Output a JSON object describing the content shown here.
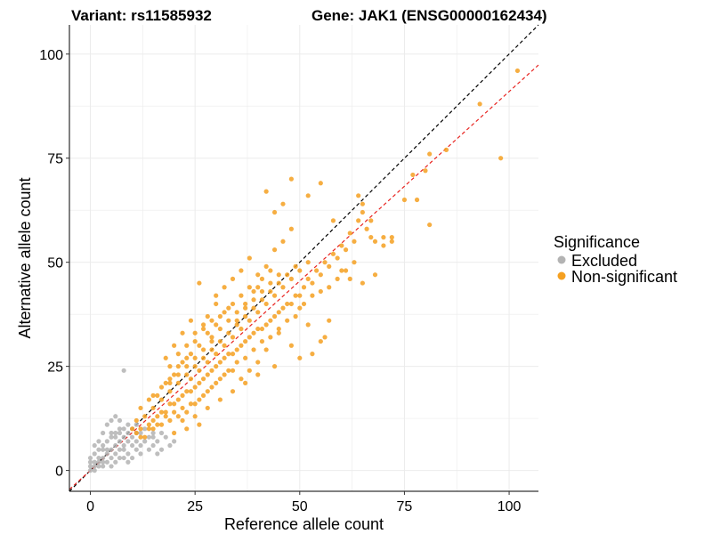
{
  "header": {
    "variant_title": "Variant: rs11585932",
    "gene_title": "Gene: JAK1 (ENSG00000162434)"
  },
  "colors": {
    "excluded": "#b3b3b3",
    "non_significant": "#f5a021",
    "identity_line": "#000000",
    "fit_line": "#e8231f",
    "grid": "#ebebeb"
  },
  "chart_data": {
    "type": "scatter",
    "xlabel": "Reference allele count",
    "ylabel": "Alternative allele count",
    "xlim": [
      -5,
      107
    ],
    "ylim": [
      -5,
      107
    ],
    "x_ticks": [
      0,
      25,
      50,
      75,
      100
    ],
    "y_ticks": [
      0,
      25,
      50,
      75,
      100
    ],
    "grid": true,
    "legend_position": "right",
    "legend": {
      "title": "Significance",
      "entries": [
        "Excluded",
        "Non-significant"
      ]
    },
    "lines": [
      {
        "name": "identity",
        "slope": 1.0,
        "intercept": 0,
        "style": "dashed",
        "color": "#000000"
      },
      {
        "name": "fit",
        "slope": 0.91,
        "intercept": 0,
        "style": "dashed",
        "color": "#e8231f"
      }
    ],
    "series": [
      {
        "name": "Excluded",
        "color": "#b3b3b3",
        "points": [
          [
            0,
            0
          ],
          [
            0,
            1
          ],
          [
            1,
            1
          ],
          [
            1,
            2
          ],
          [
            0,
            3
          ],
          [
            2,
            2
          ],
          [
            1,
            4
          ],
          [
            2,
            3
          ],
          [
            3,
            1
          ],
          [
            3,
            3
          ],
          [
            2,
            5
          ],
          [
            4,
            2
          ],
          [
            4,
            4
          ],
          [
            3,
            6
          ],
          [
            5,
            3
          ],
          [
            5,
            5
          ],
          [
            4,
            7
          ],
          [
            6,
            4
          ],
          [
            6,
            6
          ],
          [
            5,
            8
          ],
          [
            7,
            3
          ],
          [
            7,
            5
          ],
          [
            7,
            7
          ],
          [
            6,
            9
          ],
          [
            8,
            5
          ],
          [
            8,
            6
          ],
          [
            8,
            8
          ],
          [
            9,
            4
          ],
          [
            9,
            7
          ],
          [
            9,
            9
          ],
          [
            10,
            6
          ],
          [
            10,
            8
          ],
          [
            11,
            5
          ],
          [
            11,
            7
          ],
          [
            12,
            6
          ],
          [
            12,
            9
          ],
          [
            13,
            7
          ],
          [
            14,
            8
          ],
          [
            15,
            6
          ],
          [
            16,
            7
          ],
          [
            17,
            5
          ],
          [
            18,
            8
          ],
          [
            3,
            9
          ],
          [
            4,
            11
          ],
          [
            5,
            12
          ],
          [
            6,
            13
          ],
          [
            7,
            10
          ],
          [
            8,
            24
          ],
          [
            2,
            7
          ],
          [
            1,
            6
          ],
          [
            0,
            2
          ],
          [
            3,
            5
          ],
          [
            6,
            2
          ],
          [
            9,
            2
          ],
          [
            10,
            3
          ],
          [
            12,
            4
          ],
          [
            14,
            5
          ],
          [
            15,
            9
          ],
          [
            16,
            4
          ],
          [
            19,
            6
          ],
          [
            20,
            7
          ],
          [
            5,
            9
          ],
          [
            7,
            12
          ],
          [
            8,
            10
          ],
          [
            10,
            10
          ],
          [
            11,
            11
          ],
          [
            4,
            5
          ],
          [
            6,
            8
          ],
          [
            8,
            3
          ],
          [
            2,
            1
          ],
          [
            1,
            0
          ],
          [
            3,
            2
          ],
          [
            5,
            1
          ],
          [
            7,
            9
          ],
          [
            9,
            11
          ],
          [
            11,
            9
          ],
          [
            13,
            10
          ],
          [
            15,
            8
          ],
          [
            17,
            9
          ]
        ]
      },
      {
        "name": "Non-significant",
        "color": "#f5a021",
        "points": [
          [
            10,
            10
          ],
          [
            11,
            12
          ],
          [
            12,
            10
          ],
          [
            13,
            13
          ],
          [
            14,
            11
          ],
          [
            15,
            15
          ],
          [
            16,
            13
          ],
          [
            17,
            17
          ],
          [
            18,
            14
          ],
          [
            19,
            19
          ],
          [
            20,
            16
          ],
          [
            21,
            21
          ],
          [
            22,
            18
          ],
          [
            23,
            23
          ],
          [
            24,
            19
          ],
          [
            25,
            25
          ],
          [
            26,
            21
          ],
          [
            27,
            27
          ],
          [
            28,
            23
          ],
          [
            29,
            29
          ],
          [
            30,
            25
          ],
          [
            31,
            31
          ],
          [
            32,
            27
          ],
          [
            33,
            33
          ],
          [
            34,
            28
          ],
          [
            35,
            35
          ],
          [
            36,
            30
          ],
          [
            37,
            37
          ],
          [
            38,
            32
          ],
          [
            39,
            39
          ],
          [
            40,
            34
          ],
          [
            41,
            41
          ],
          [
            42,
            35
          ],
          [
            43,
            43
          ],
          [
            44,
            37
          ],
          [
            45,
            45
          ],
          [
            46,
            39
          ],
          [
            47,
            47
          ],
          [
            48,
            40
          ],
          [
            49,
            49
          ],
          [
            50,
            42
          ],
          [
            51,
            44
          ],
          [
            52,
            46
          ],
          [
            53,
            45
          ],
          [
            54,
            48
          ],
          [
            55,
            47
          ],
          [
            56,
            50
          ],
          [
            57,
            49
          ],
          [
            58,
            52
          ],
          [
            59,
            51
          ],
          [
            60,
            54
          ],
          [
            61,
            53
          ],
          [
            62,
            57
          ],
          [
            63,
            55
          ],
          [
            64,
            60
          ],
          [
            65,
            62
          ],
          [
            66,
            58
          ],
          [
            67,
            56
          ],
          [
            68,
            55
          ],
          [
            70,
            54
          ],
          [
            72,
            56
          ],
          [
            75,
            65
          ],
          [
            77,
            71
          ],
          [
            78,
            65
          ],
          [
            81,
            59
          ],
          [
            81,
            76
          ],
          [
            85,
            77
          ],
          [
            93,
            88
          ],
          [
            98,
            75
          ],
          [
            102,
            96
          ],
          [
            12,
            15
          ],
          [
            14,
            17
          ],
          [
            16,
            18
          ],
          [
            18,
            21
          ],
          [
            20,
            23
          ],
          [
            22,
            26
          ],
          [
            24,
            28
          ],
          [
            26,
            30
          ],
          [
            28,
            33
          ],
          [
            30,
            35
          ],
          [
            32,
            38
          ],
          [
            34,
            40
          ],
          [
            36,
            42
          ],
          [
            38,
            44
          ],
          [
            40,
            47
          ],
          [
            42,
            49
          ],
          [
            44,
            53
          ],
          [
            46,
            55
          ],
          [
            48,
            58
          ],
          [
            15,
            12
          ],
          [
            17,
            14
          ],
          [
            19,
            16
          ],
          [
            21,
            17
          ],
          [
            23,
            19
          ],
          [
            25,
            20
          ],
          [
            27,
            22
          ],
          [
            29,
            24
          ],
          [
            31,
            26
          ],
          [
            33,
            28
          ],
          [
            35,
            29
          ],
          [
            37,
            31
          ],
          [
            39,
            33
          ],
          [
            41,
            34
          ],
          [
            43,
            36
          ],
          [
            45,
            38
          ],
          [
            47,
            40
          ],
          [
            49,
            42
          ],
          [
            18,
            27
          ],
          [
            20,
            30
          ],
          [
            22,
            33
          ],
          [
            24,
            36
          ],
          [
            26,
            45
          ],
          [
            28,
            37
          ],
          [
            30,
            40
          ],
          [
            22,
            12
          ],
          [
            25,
            13
          ],
          [
            28,
            15
          ],
          [
            31,
            17
          ],
          [
            34,
            19
          ],
          [
            37,
            21
          ],
          [
            40,
            23
          ],
          [
            44,
            25
          ],
          [
            20,
            9
          ],
          [
            23,
            10
          ],
          [
            26,
            11
          ],
          [
            19,
            22
          ],
          [
            21,
            25
          ],
          [
            23,
            27
          ],
          [
            25,
            31
          ],
          [
            27,
            34
          ],
          [
            29,
            36
          ],
          [
            31,
            37
          ],
          [
            33,
            39
          ],
          [
            35,
            36
          ],
          [
            37,
            39
          ],
          [
            39,
            41
          ],
          [
            41,
            43
          ],
          [
            43,
            45
          ],
          [
            45,
            47
          ],
          [
            42,
            67
          ],
          [
            44,
            62
          ],
          [
            46,
            64
          ],
          [
            48,
            70
          ],
          [
            52,
            66
          ],
          [
            55,
            69
          ],
          [
            58,
            60
          ],
          [
            64,
            66
          ],
          [
            65,
            64
          ],
          [
            67,
            60
          ],
          [
            70,
            56
          ],
          [
            72,
            55
          ],
          [
            80,
            72
          ],
          [
            60,
            48
          ],
          [
            62,
            46
          ],
          [
            65,
            45
          ],
          [
            68,
            47
          ],
          [
            50,
            39
          ],
          [
            52,
            35
          ],
          [
            55,
            31
          ],
          [
            57,
            36
          ],
          [
            45,
            33
          ],
          [
            48,
            30
          ],
          [
            50,
            27
          ],
          [
            53,
            28
          ],
          [
            56,
            32
          ],
          [
            42,
            29
          ],
          [
            40,
            26
          ],
          [
            38,
            24
          ],
          [
            36,
            22
          ],
          [
            34,
            24
          ],
          [
            32,
            23
          ],
          [
            30,
            21
          ],
          [
            28,
            19
          ],
          [
            26,
            17
          ],
          [
            24,
            16
          ],
          [
            22,
            15
          ],
          [
            20,
            14
          ],
          [
            18,
            13
          ],
          [
            16,
            11
          ],
          [
            14,
            10
          ],
          [
            12,
            8
          ],
          [
            11,
            9
          ],
          [
            13,
            8
          ],
          [
            15,
            10
          ],
          [
            17,
            11
          ],
          [
            19,
            12
          ],
          [
            21,
            13
          ],
          [
            23,
            14
          ],
          [
            25,
            16
          ],
          [
            27,
            18
          ],
          [
            29,
            20
          ],
          [
            31,
            22
          ],
          [
            33,
            24
          ],
          [
            35,
            26
          ],
          [
            37,
            27
          ],
          [
            39,
            29
          ],
          [
            41,
            31
          ],
          [
            43,
            32
          ],
          [
            45,
            34
          ],
          [
            47,
            36
          ],
          [
            49,
            37
          ],
          [
            51,
            40
          ],
          [
            53,
            42
          ],
          [
            55,
            43
          ],
          [
            57,
            44
          ],
          [
            59,
            46
          ],
          [
            61,
            48
          ],
          [
            63,
            50
          ],
          [
            30,
            42
          ],
          [
            32,
            44
          ],
          [
            34,
            46
          ],
          [
            36,
            48
          ],
          [
            38,
            51
          ],
          [
            40,
            44
          ],
          [
            19,
            25
          ],
          [
            21,
            28
          ],
          [
            23,
            30
          ],
          [
            25,
            33
          ],
          [
            27,
            35
          ],
          [
            29,
            31
          ],
          [
            15,
            18
          ],
          [
            17,
            20
          ],
          [
            19,
            21
          ],
          [
            21,
            23
          ],
          [
            23,
            25
          ],
          [
            25,
            27
          ],
          [
            27,
            29
          ],
          [
            29,
            32
          ],
          [
            31,
            34
          ],
          [
            33,
            36
          ],
          [
            35,
            38
          ],
          [
            37,
            40
          ],
          [
            39,
            43
          ],
          [
            41,
            46
          ],
          [
            43,
            48
          ],
          [
            24,
            22
          ],
          [
            26,
            24
          ],
          [
            28,
            26
          ],
          [
            30,
            28
          ],
          [
            32,
            30
          ],
          [
            34,
            32
          ],
          [
            36,
            34
          ],
          [
            38,
            36
          ],
          [
            40,
            38
          ],
          [
            42,
            40
          ],
          [
            44,
            42
          ],
          [
            46,
            44
          ],
          [
            48,
            46
          ],
          [
            50,
            48
          ],
          [
            52,
            50
          ]
        ]
      }
    ]
  }
}
